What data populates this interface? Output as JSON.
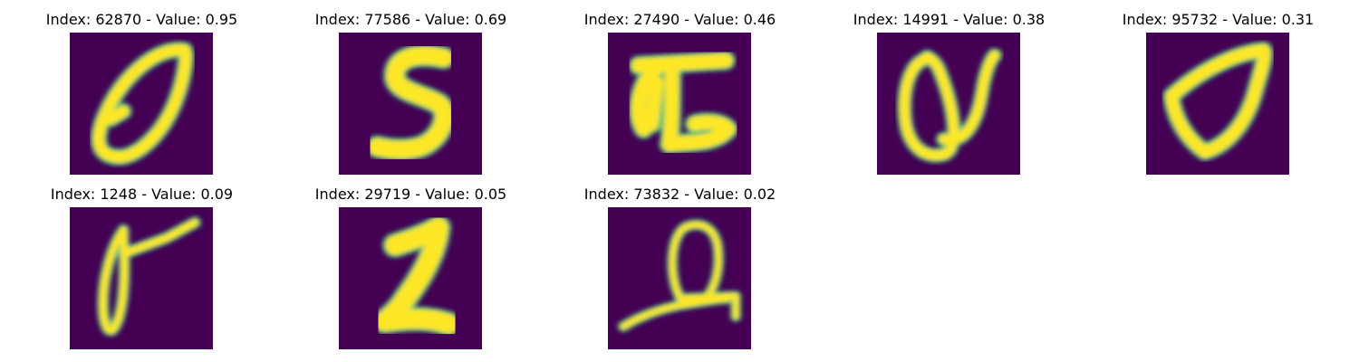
{
  "figure": {
    "colormap": [
      "#440154",
      "#31688e",
      "#21918c",
      "#35b779",
      "#fde725"
    ],
    "panels": [
      {
        "title": "Index: 62870 - Value: 0.95"
      },
      {
        "title": "Index: 77586 - Value: 0.69"
      },
      {
        "title": "Index: 27490 - Value: 0.46"
      },
      {
        "title": "Index: 14991 - Value: 0.38"
      },
      {
        "title": "Index: 95732 - Value: 0.31"
      },
      {
        "title": "Index: 1248 - Value: 0.09"
      },
      {
        "title": "Index: 29719 - Value: 0.05"
      },
      {
        "title": "Index: 73832 - Value: 0.02"
      }
    ]
  }
}
